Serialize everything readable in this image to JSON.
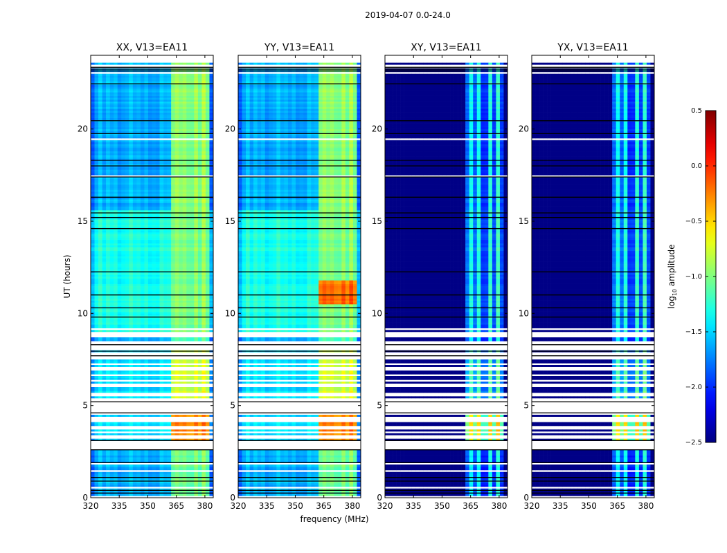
{
  "chart_data": {
    "type": "heatmap",
    "title": "2019-04-07 0.0-24.0",
    "xlabel": "frequency (MHz)",
    "ylabel": "UT (hours)",
    "xlim": [
      320,
      384.4
    ],
    "ylim": [
      0,
      24
    ],
    "xticks": [
      320,
      335,
      350,
      365,
      380
    ],
    "yticks": [
      0,
      5,
      10,
      15,
      20
    ],
    "panels": [
      {
        "title": "XX, V13=EA11",
        "pol": "parallel"
      },
      {
        "title": "YY, V13=EA11",
        "pol": "parallel"
      },
      {
        "title": "XY, V13=EA11",
        "pol": "cross"
      },
      {
        "title": "YX, V13=EA11",
        "pol": "cross"
      }
    ],
    "colorbar": {
      "label_prefix": "log",
      "label_sub": "10",
      "label_suffix": " amplitude",
      "range": [
        -2.5,
        0.5
      ],
      "ticks": [
        "0.5",
        "0.0",
        "−0.5",
        "−1.0",
        "−1.5",
        "−2.0",
        "−2.5"
      ],
      "tick_values": [
        0.5,
        0,
        -0.5,
        -1,
        -1.5,
        -2,
        -2.5
      ],
      "colormap": "jet"
    },
    "band_mhz": [
      363,
      381.5
    ],
    "subband_centers_mhz": [
      365.5,
      370,
      375,
      379.5
    ],
    "time_blocks": [
      {
        "from": 0,
        "to": 2.6,
        "flag_fraction": 0.12,
        "parallel_base": -1.6,
        "band_level": -0.95,
        "cross_band_level": -1.35
      },
      {
        "from": 2.6,
        "to": 4.6,
        "flag_fraction": 0.7,
        "parallel_base": -1.45,
        "band_level": -0.15,
        "cross_band_level": -0.5
      },
      {
        "from": 4.6,
        "to": 5.2,
        "flag_fraction": 0.95,
        "parallel_base": -1.5,
        "band_level": -0.6,
        "cross_band_level": -1.2
      },
      {
        "from": 5.2,
        "to": 8.3,
        "flag_fraction": 0.62,
        "parallel_base": -1.45,
        "band_level": -0.65,
        "cross_band_level": -1.1
      },
      {
        "from": 8.3,
        "to": 8.6,
        "flag_fraction": 0.1,
        "parallel_base": -1.55,
        "band_level": -1.0,
        "cross_band_level": -1.3
      },
      {
        "from": 8.6,
        "to": 8.9,
        "flag_fraction": 0.9,
        "parallel_base": -1.55,
        "band_level": -1.0,
        "cross_band_level": -1.3
      },
      {
        "from": 8.9,
        "to": 15.5,
        "flag_fraction": 0.12,
        "parallel_base": -1.3,
        "band_level": -0.9,
        "cross_band_level": -1.25
      },
      {
        "from": 15.5,
        "to": 23.3,
        "flag_fraction": 0.15,
        "parallel_base": -1.6,
        "band_level": -0.85,
        "cross_band_level": -1.3
      },
      {
        "from": 23.3,
        "to": 24,
        "flag_fraction": 0.85,
        "parallel_base": -1.6,
        "band_level": -0.9,
        "cross_band_level": -1.3
      }
    ],
    "hot_spot": {
      "panel": 1,
      "from": 10.4,
      "to": 11.7,
      "level": -0.1
    },
    "black_lines_hours": [
      0.25,
      0.4,
      0.9,
      1.1,
      1.9,
      2.6,
      3.1,
      4.6,
      5.2,
      7.7,
      7.95,
      8.3,
      9.8,
      10.3,
      11.0,
      12.25,
      14.6,
      15.2,
      15.45,
      16.3,
      17.4,
      18.0,
      18.3,
      19.75,
      20.45,
      22.45,
      23.15,
      23.25,
      23.35
    ]
  }
}
